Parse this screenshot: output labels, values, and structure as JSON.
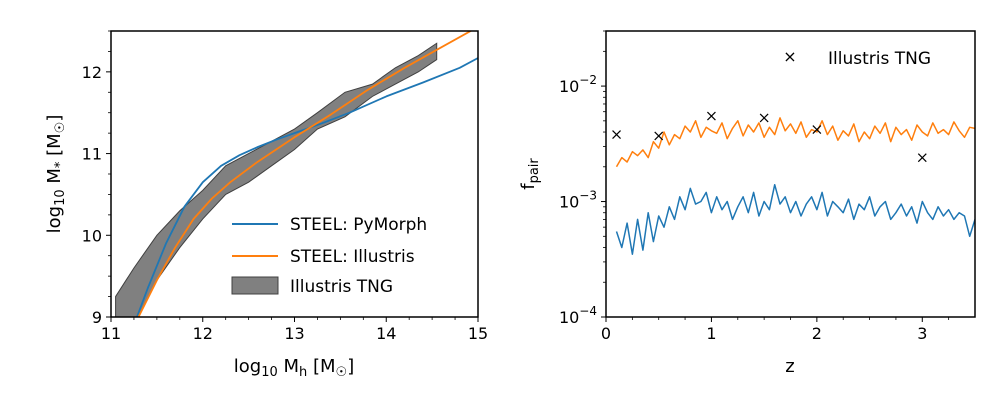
{
  "colors": {
    "pymorph": "#1f77b4",
    "illustris": "#ff7f0e",
    "tng_fill": "#808080",
    "tng_edge": "#404040"
  },
  "chart_data": [
    {
      "type": "line",
      "xlabel": "log₁₀ Mₕ [M☉]",
      "ylabel": "log₁₀ M* [M☉]",
      "xlim": [
        11,
        15
      ],
      "ylim": [
        9,
        12.5
      ],
      "xticks": [
        11,
        12,
        13,
        14,
        15
      ],
      "yticks": [
        9,
        10,
        11,
        12
      ],
      "xtick_labels": [
        "11",
        "12",
        "13",
        "14",
        "15"
      ],
      "ytick_labels": [
        "9",
        "10",
        "11",
        "12"
      ],
      "legend_position": "lower-right",
      "series": [
        {
          "name": "STEEL: PyMorph",
          "style": "line",
          "x": [
            11.25,
            11.4,
            11.6,
            11.8,
            12.0,
            12.2,
            12.4,
            12.6,
            12.8,
            13.0,
            13.3,
            13.6,
            14.0,
            14.4,
            14.8,
            15.0
          ],
          "y": [
            8.9,
            9.35,
            9.9,
            10.35,
            10.65,
            10.85,
            10.98,
            11.08,
            11.17,
            11.25,
            11.37,
            11.5,
            11.7,
            11.87,
            12.05,
            12.17
          ]
        },
        {
          "name": "STEEL: Illustris",
          "style": "line",
          "x": [
            11.3,
            11.5,
            11.7,
            11.9,
            12.1,
            12.3,
            12.6,
            13.0,
            13.4,
            13.8,
            14.2,
            14.6,
            15.0
          ],
          "y": [
            9.0,
            9.45,
            9.85,
            10.2,
            10.45,
            10.65,
            10.9,
            11.2,
            11.48,
            11.78,
            12.05,
            12.3,
            12.55
          ]
        },
        {
          "name": "Illustris TNG",
          "style": "band",
          "x": [
            11.05,
            11.25,
            11.5,
            11.75,
            12.0,
            12.25,
            12.5,
            12.75,
            13.0,
            13.25,
            13.55,
            13.85,
            14.1,
            14.35,
            14.55
          ],
          "y_low": [
            8.65,
            8.9,
            9.45,
            9.85,
            10.2,
            10.5,
            10.65,
            10.85,
            11.05,
            11.3,
            11.45,
            11.7,
            11.85,
            12.0,
            12.15
          ],
          "y_high": [
            9.25,
            9.6,
            10.0,
            10.3,
            10.55,
            10.85,
            11.0,
            11.15,
            11.3,
            11.5,
            11.75,
            11.85,
            12.05,
            12.2,
            12.35
          ]
        }
      ]
    },
    {
      "type": "line",
      "xlabel": "z",
      "ylabel": "f_pair",
      "ylabel_main": "f",
      "ylabel_sub": "pair",
      "xlim": [
        0,
        3.5
      ],
      "ylim": [
        0.0001,
        0.03
      ],
      "yscale": "log",
      "xticks": [
        0,
        1,
        2,
        3
      ],
      "xtick_labels": [
        "0",
        "1",
        "2",
        "3"
      ],
      "yticks": [
        0.0001,
        0.001,
        0.01
      ],
      "ytick_labels": [
        {
          "base": "10",
          "exp": "−4"
        },
        {
          "base": "10",
          "exp": "−3"
        },
        {
          "base": "10",
          "exp": "−2"
        }
      ],
      "legend_position": "top-right",
      "series": [
        {
          "name": "Illustris TNG",
          "style": "marker",
          "x": [
            0.1,
            0.5,
            1.0,
            1.5,
            2.0,
            3.0
          ],
          "y": [
            0.0038,
            0.0037,
            0.0055,
            0.0053,
            0.0042,
            0.0024
          ]
        },
        {
          "name": "",
          "style": "line",
          "color_key": "illustris",
          "x": [
            0.1,
            0.15,
            0.2,
            0.25,
            0.3,
            0.35,
            0.4,
            0.45,
            0.5,
            0.55,
            0.6,
            0.65,
            0.7,
            0.75,
            0.8,
            0.85,
            0.9,
            0.95,
            1.0,
            1.05,
            1.1,
            1.15,
            1.2,
            1.25,
            1.3,
            1.35,
            1.4,
            1.45,
            1.5,
            1.55,
            1.6,
            1.65,
            1.7,
            1.75,
            1.8,
            1.85,
            1.9,
            1.95,
            2.0,
            2.05,
            2.1,
            2.15,
            2.2,
            2.25,
            2.3,
            2.35,
            2.4,
            2.45,
            2.5,
            2.55,
            2.6,
            2.65,
            2.7,
            2.75,
            2.8,
            2.85,
            2.9,
            2.95,
            3.0,
            3.05,
            3.1,
            3.15,
            3.2,
            3.25,
            3.3,
            3.35,
            3.4,
            3.45,
            3.5
          ],
          "y": [
            0.002,
            0.0024,
            0.0022,
            0.0027,
            0.0025,
            0.0028,
            0.0024,
            0.0033,
            0.0029,
            0.004,
            0.0031,
            0.0038,
            0.0035,
            0.0045,
            0.004,
            0.005,
            0.0036,
            0.0044,
            0.0041,
            0.0039,
            0.0048,
            0.0035,
            0.0043,
            0.005,
            0.0037,
            0.0046,
            0.004,
            0.0048,
            0.0036,
            0.0044,
            0.0038,
            0.0053,
            0.0041,
            0.0047,
            0.0039,
            0.0049,
            0.0036,
            0.0042,
            0.004,
            0.005,
            0.0038,
            0.0045,
            0.0034,
            0.0041,
            0.0037,
            0.0047,
            0.0033,
            0.004,
            0.0035,
            0.0045,
            0.0039,
            0.0048,
            0.0033,
            0.0044,
            0.0038,
            0.0042,
            0.0034,
            0.0046,
            0.004,
            0.0037,
            0.0048,
            0.0039,
            0.0042,
            0.0038,
            0.0049,
            0.0041,
            0.0036,
            0.0044,
            0.0043
          ]
        },
        {
          "name": "",
          "style": "line",
          "color_key": "pymorph",
          "x": [
            0.1,
            0.15,
            0.2,
            0.25,
            0.3,
            0.35,
            0.4,
            0.45,
            0.5,
            0.55,
            0.6,
            0.65,
            0.7,
            0.75,
            0.8,
            0.85,
            0.9,
            0.95,
            1.0,
            1.05,
            1.1,
            1.15,
            1.2,
            1.25,
            1.3,
            1.35,
            1.4,
            1.45,
            1.5,
            1.55,
            1.6,
            1.65,
            1.7,
            1.75,
            1.8,
            1.85,
            1.9,
            1.95,
            2.0,
            2.05,
            2.1,
            2.15,
            2.2,
            2.25,
            2.3,
            2.35,
            2.4,
            2.45,
            2.5,
            2.55,
            2.6,
            2.65,
            2.7,
            2.75,
            2.8,
            2.85,
            2.9,
            2.95,
            3.0,
            3.05,
            3.1,
            3.15,
            3.2,
            3.25,
            3.3,
            3.35,
            3.4,
            3.45,
            3.5
          ],
          "y": [
            0.00055,
            0.0004,
            0.00065,
            0.00035,
            0.0007,
            0.00038,
            0.0008,
            0.00045,
            0.00075,
            0.0006,
            0.0009,
            0.0007,
            0.0011,
            0.00085,
            0.0013,
            0.00095,
            0.001,
            0.0012,
            0.0008,
            0.0011,
            0.00085,
            0.001,
            0.0007,
            0.0009,
            0.0011,
            0.0008,
            0.0012,
            0.00075,
            0.001,
            0.00085,
            0.0014,
            0.00095,
            0.0011,
            0.0008,
            0.001,
            0.00075,
            0.00095,
            0.0011,
            0.00085,
            0.0012,
            0.00075,
            0.001,
            0.0009,
            0.0008,
            0.00105,
            0.0007,
            0.00095,
            0.00085,
            0.0011,
            0.00075,
            0.0009,
            0.001,
            0.0007,
            0.0008,
            0.00095,
            0.00075,
            0.0009,
            0.00065,
            0.001,
            0.0008,
            0.0007,
            0.0009,
            0.00075,
            0.00085,
            0.0007,
            0.0008,
            0.00075,
            0.0005,
            0.0007
          ]
        }
      ]
    }
  ]
}
